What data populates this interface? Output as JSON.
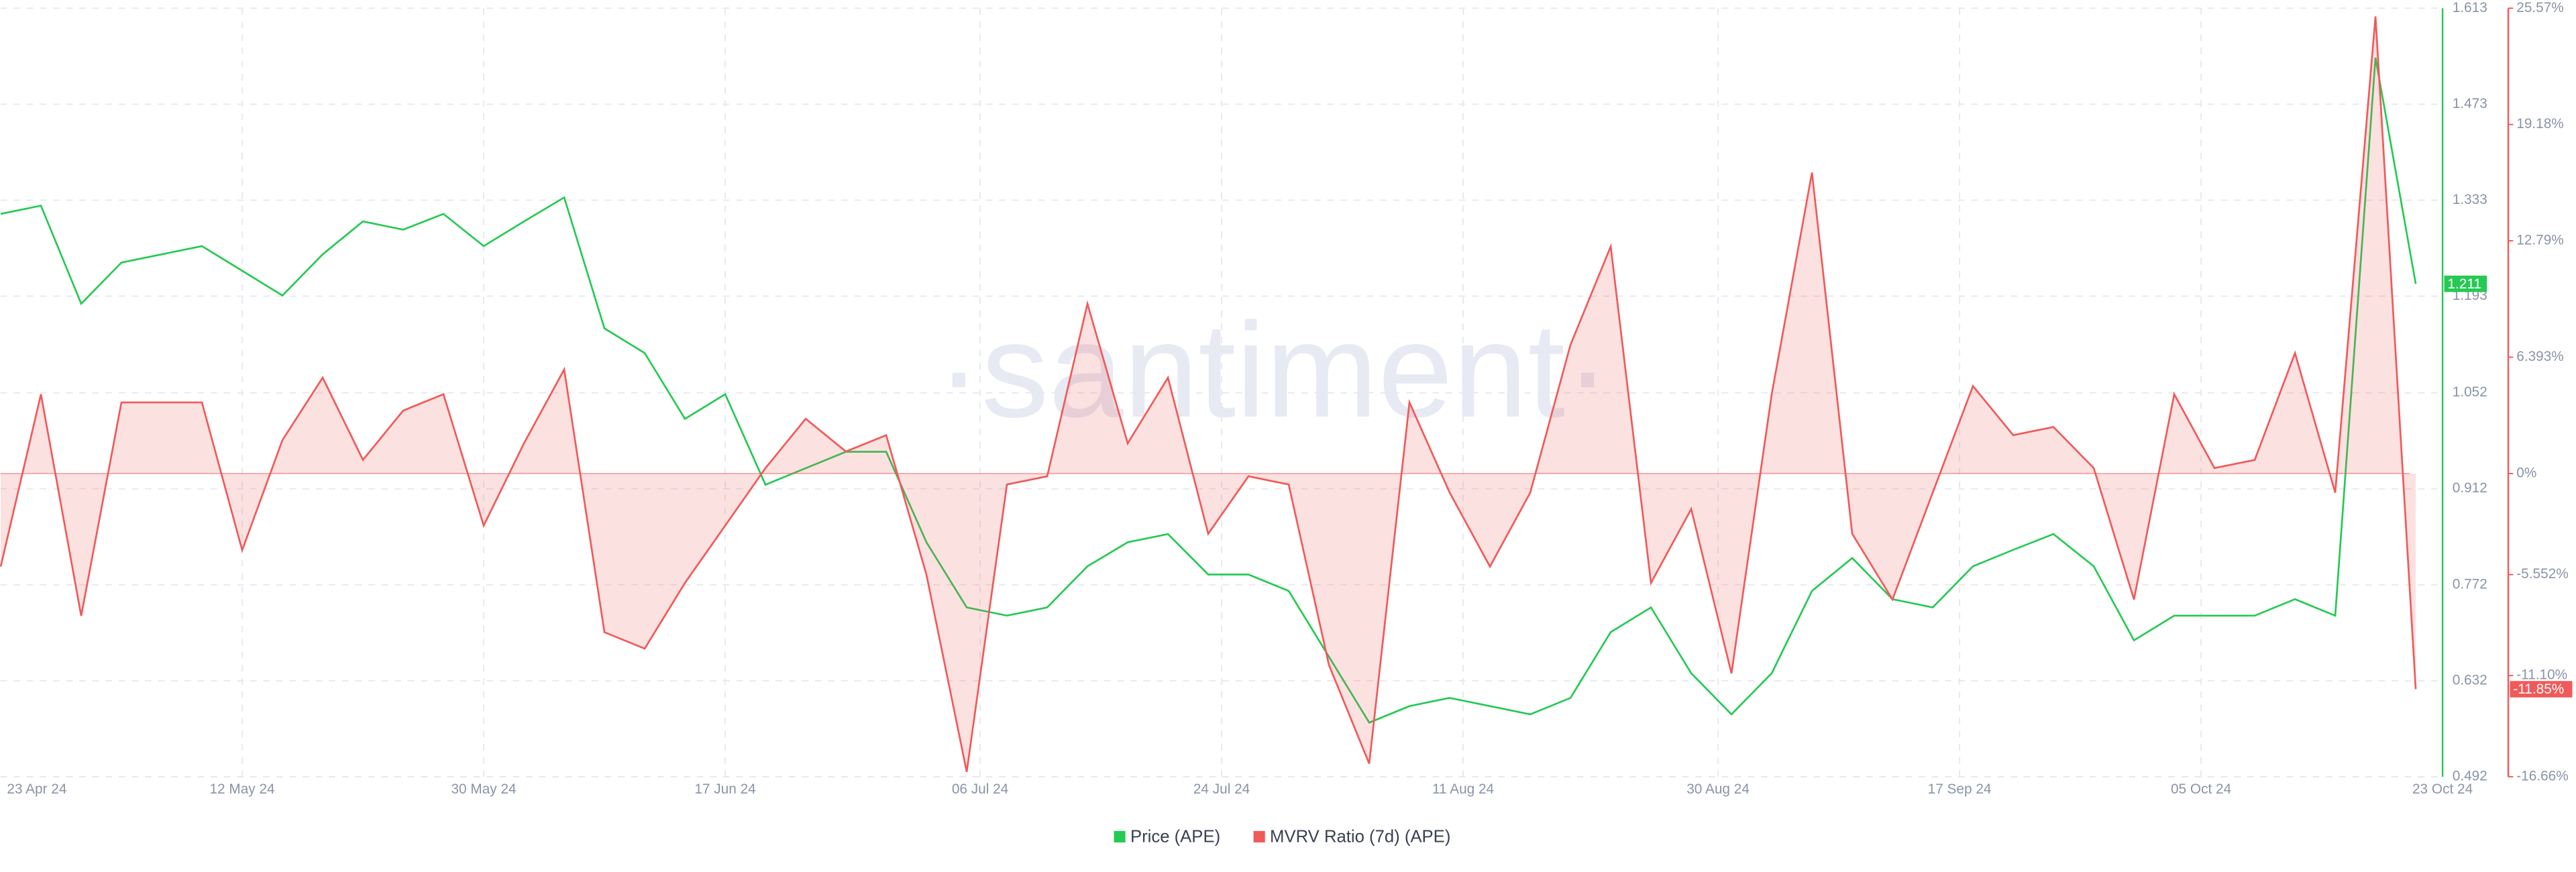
{
  "chart_data": {
    "type": "line",
    "watermark": "·santiment·",
    "x": [
      "2024-04-24",
      "2024-04-27",
      "2024-04-30",
      "2024-05-03",
      "2024-05-06",
      "2024-05-09",
      "2024-05-12",
      "2024-05-15",
      "2024-05-18",
      "2024-05-21",
      "2024-05-24",
      "2024-05-27",
      "2024-05-30",
      "2024-06-02",
      "2024-06-05",
      "2024-06-08",
      "2024-06-11",
      "2024-06-14",
      "2024-06-17",
      "2024-06-20",
      "2024-06-23",
      "2024-06-26",
      "2024-06-29",
      "2024-07-02",
      "2024-07-05",
      "2024-07-08",
      "2024-07-11",
      "2024-07-14",
      "2024-07-17",
      "2024-07-20",
      "2024-07-23",
      "2024-07-26",
      "2024-07-29",
      "2024-08-01",
      "2024-08-04",
      "2024-08-07",
      "2024-08-10",
      "2024-08-13",
      "2024-08-16",
      "2024-08-19",
      "2024-08-22",
      "2024-08-25",
      "2024-08-28",
      "2024-08-31",
      "2024-09-03",
      "2024-09-06",
      "2024-09-09",
      "2024-09-12",
      "2024-09-15",
      "2024-09-18",
      "2024-09-21",
      "2024-09-24",
      "2024-09-27",
      "2024-09-30",
      "2024-10-03",
      "2024-10-06",
      "2024-10-09",
      "2024-10-12",
      "2024-10-15",
      "2024-10-18",
      "2024-10-21"
    ],
    "xlim": [
      "2024-04-23",
      "2024-10-23"
    ],
    "xticks": [
      {
        "value": "2024-04-23",
        "label": "23 Apr 24"
      },
      {
        "value": "2024-05-12",
        "label": "12 May 24"
      },
      {
        "value": "2024-05-30",
        "label": "30 May 24"
      },
      {
        "value": "2024-06-17",
        "label": "17 Jun 24"
      },
      {
        "value": "2024-07-06",
        "label": "06 Jul 24"
      },
      {
        "value": "2024-07-24",
        "label": "24 Jul 24"
      },
      {
        "value": "2024-08-11",
        "label": "11 Aug 24"
      },
      {
        "value": "2024-08-30",
        "label": "30 Aug 24"
      },
      {
        "value": "2024-09-17",
        "label": "17 Sep 24"
      },
      {
        "value": "2024-10-05",
        "label": "05 Oct 24"
      },
      {
        "value": "2024-10-23",
        "label": "23 Oct 24"
      }
    ],
    "ylim": [
      0.492,
      1.613
    ],
    "yticks": [
      0.492,
      0.632,
      0.772,
      0.912,
      1.052,
      1.193,
      1.333,
      1.473,
      1.613
    ],
    "y2lim": [
      -16.66,
      25.57
    ],
    "y2ticks": [
      {
        "value": -16.66,
        "label": "-16.66%"
      },
      {
        "value": -11.1,
        "label": "-11.10%"
      },
      {
        "value": -5.552,
        "label": "-5.552%"
      },
      {
        "value": 0,
        "label": "0%"
      },
      {
        "value": 6.393,
        "label": "6.393%"
      },
      {
        "value": 12.79,
        "label": "12.79%"
      },
      {
        "value": 19.18,
        "label": "19.18%"
      },
      {
        "value": 25.57,
        "label": "25.57%"
      }
    ],
    "grid": true,
    "legend": "bottom",
    "series": [
      {
        "name": "Price (APE)",
        "color": "#26c953",
        "badge": "1.211",
        "values": [
          1.313,
          1.325,
          1.182,
          1.242,
          1.254,
          1.266,
          1.23,
          1.194,
          1.254,
          1.302,
          1.29,
          1.313,
          1.266,
          1.302,
          1.337,
          1.146,
          1.11,
          1.014,
          1.05,
          0.918,
          0.942,
          0.966,
          0.966,
          0.834,
          0.739,
          0.727,
          0.739,
          0.799,
          0.834,
          0.846,
          0.787,
          0.787,
          0.763,
          0.667,
          0.571,
          0.595,
          0.607,
          0.595,
          0.583,
          0.607,
          0.703,
          0.739,
          0.643,
          0.583,
          0.643,
          0.763,
          0.811,
          0.751,
          0.739,
          0.799,
          0.823,
          0.846,
          0.799,
          0.691,
          0.727,
          0.727,
          0.727,
          0.751,
          0.727,
          1.541,
          1.211
        ]
      },
      {
        "name": "MVRV Ratio (7d) (APE)",
        "color": "#f05a5a",
        "axis": "y2",
        "area": true,
        "badge": "-11.85%",
        "values": [
          -5.11,
          4.36,
          -7.82,
          3.91,
          3.91,
          3.91,
          -4.21,
          1.84,
          5.27,
          0.75,
          3.46,
          4.36,
          -2.86,
          1.66,
          5.72,
          -8.72,
          -9.62,
          -6.01,
          -2.86,
          0.3,
          3.01,
          1.21,
          2.11,
          -5.56,
          -16.39,
          -0.6,
          -0.15,
          9.33,
          1.66,
          5.27,
          -3.31,
          -0.15,
          -0.6,
          -10.52,
          -15.94,
          3.91,
          -1.05,
          -5.11,
          -1.05,
          7.07,
          12.48,
          -6.01,
          -1.95,
          -10.98,
          4.36,
          16.54,
          -3.31,
          -6.92,
          -1.05,
          4.81,
          2.11,
          2.56,
          0.3,
          -6.92,
          4.36,
          0.3,
          0.75,
          6.62,
          -1.05,
          25.12,
          -11.85
        ]
      }
    ]
  }
}
